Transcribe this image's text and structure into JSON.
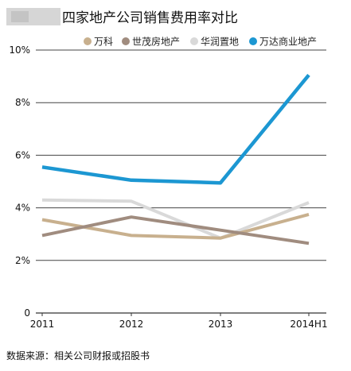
{
  "chart_data": {
    "type": "line",
    "title": "四家地产公司销售费用率对比",
    "categories": [
      "2011",
      "2012",
      "2013",
      "2014H1"
    ],
    "ylim": [
      0,
      10
    ],
    "yticks": [
      "0",
      "2%",
      "4%",
      "6%",
      "8%",
      "10%"
    ],
    "ytick_values": [
      0,
      2,
      4,
      6,
      8,
      10
    ],
    "grid": true,
    "legend_position": "top",
    "series": [
      {
        "name": "万科",
        "color": "#c8b08e",
        "values": [
          3.55,
          2.95,
          2.85,
          3.75
        ]
      },
      {
        "name": "世茂房地产",
        "color": "#a08c7f",
        "values": [
          2.95,
          3.65,
          3.15,
          2.65
        ]
      },
      {
        "name": "华润置地",
        "color": "#d9d9d9",
        "values": [
          4.3,
          4.25,
          2.85,
          4.2
        ]
      },
      {
        "name": "万达商业地产",
        "color": "#1c97d2",
        "values": [
          5.55,
          5.05,
          4.95,
          9.05
        ]
      }
    ],
    "source": "数据来源：相关公司财报或招股书"
  }
}
